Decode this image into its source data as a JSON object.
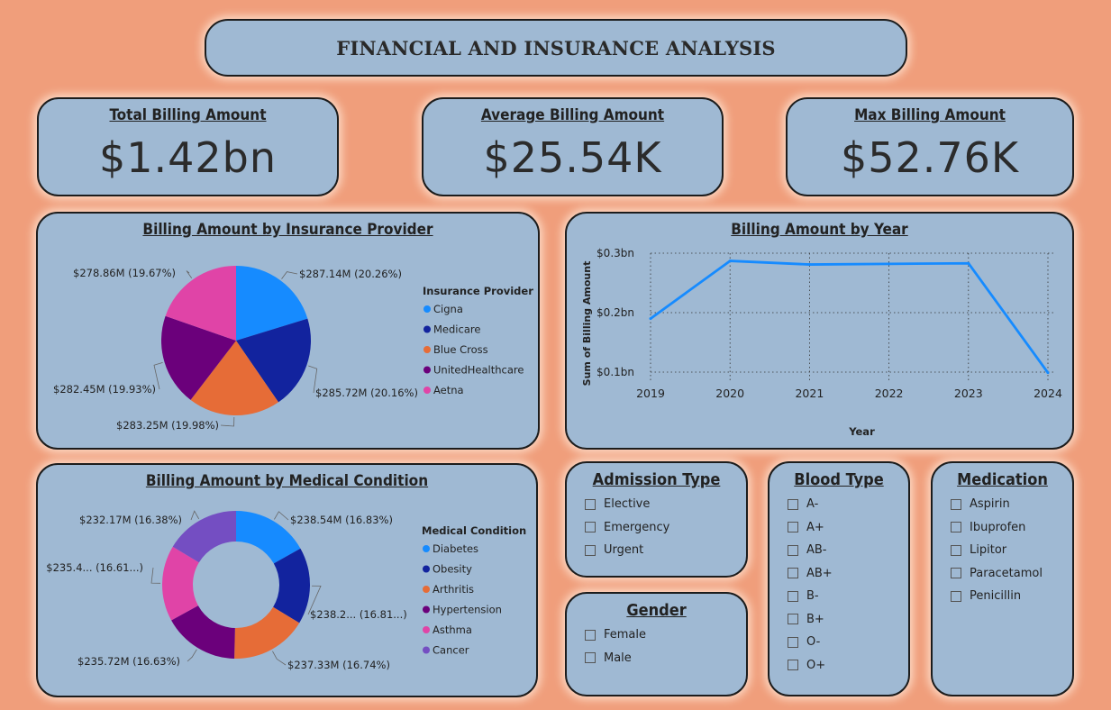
{
  "header": {
    "title": "FINANCIAL AND INSURANCE ANALYSIS"
  },
  "kpis": [
    {
      "label": "Total Billing Amount",
      "value": "$1.42bn"
    },
    {
      "label": "Average Billing Amount",
      "value": "$25.54K"
    },
    {
      "label": "Max Billing Amount",
      "value": "$52.76K"
    }
  ],
  "chart_data": [
    {
      "type": "pie",
      "title": "Billing Amount by Insurance Provider",
      "legend_title": "Insurance Provider",
      "legend_position": "right",
      "slices": [
        {
          "name": "Cigna",
          "value": 287.14,
          "percent": 20.26,
          "label": "$287.14M (20.26%)",
          "color": "#168bff"
        },
        {
          "name": "Medicare",
          "value": 285.72,
          "percent": 20.16,
          "label": "$285.72M (20.16%)",
          "color": "#12239e"
        },
        {
          "name": "Blue Cross",
          "value": 283.25,
          "percent": 19.98,
          "label": "$283.25M (19.98%)",
          "color": "#e66c37"
        },
        {
          "name": "UnitedHealthcare",
          "value": 282.45,
          "percent": 19.93,
          "label": "$282.45M (19.93%)",
          "color": "#6b007b"
        },
        {
          "name": "Aetna",
          "value": 278.86,
          "percent": 19.67,
          "label": "$278.86M (19.67%)",
          "color": "#e044a7"
        }
      ]
    },
    {
      "type": "line",
      "title": "Billing Amount by Year",
      "xlabel": "Year",
      "ylabel": "Sum of Billing Amount",
      "x": [
        2019,
        2020,
        2021,
        2022,
        2023,
        2024
      ],
      "series": [
        {
          "values": [
            0.19,
            0.287,
            0.281,
            0.282,
            0.283,
            0.099
          ],
          "color": "#168bff"
        }
      ],
      "ylim": [
        0.1,
        0.3
      ],
      "yticks": [
        "$0.1bn",
        "$0.2bn",
        "$0.3bn"
      ],
      "grid": true
    },
    {
      "type": "pie",
      "title": "Billing Amount by Medical Condition",
      "legend_title": "Medical Condition",
      "legend_position": "right",
      "donut": true,
      "slices": [
        {
          "name": "Diabetes",
          "value": 238.54,
          "percent": 16.83,
          "label": "$238.54M (16.83%)",
          "color": "#168bff"
        },
        {
          "name": "Obesity",
          "value": 238.2,
          "percent": 16.81,
          "label": "$238.2... (16.81...)",
          "color": "#12239e"
        },
        {
          "name": "Arthritis",
          "value": 237.33,
          "percent": 16.74,
          "label": "$237.33M (16.74%)",
          "color": "#e66c37"
        },
        {
          "name": "Hypertension",
          "value": 235.72,
          "percent": 16.63,
          "label": "$235.72M (16.63%)",
          "color": "#6b007b"
        },
        {
          "name": "Asthma",
          "value": 235.4,
          "percent": 16.61,
          "label": "$235.4... (16.61...)",
          "color": "#e044a7"
        },
        {
          "name": "Cancer",
          "value": 232.17,
          "percent": 16.38,
          "label": "$232.17M (16.38%)",
          "color": "#744ec2"
        }
      ]
    }
  ],
  "slicers": {
    "admission": {
      "title": "Admission Type",
      "items": [
        "Elective",
        "Emergency",
        "Urgent"
      ]
    },
    "gender": {
      "title": "Gender",
      "items": [
        "Female",
        "Male"
      ]
    },
    "blood": {
      "title": "Blood Type",
      "items": [
        "A-",
        "A+",
        "AB-",
        "AB+",
        "B-",
        "B+",
        "O-",
        "O+"
      ]
    },
    "medication": {
      "title": "Medication",
      "items": [
        "Aspirin",
        "Ibuprofen",
        "Lipitor",
        "Paracetamol",
        "Penicillin"
      ]
    }
  }
}
